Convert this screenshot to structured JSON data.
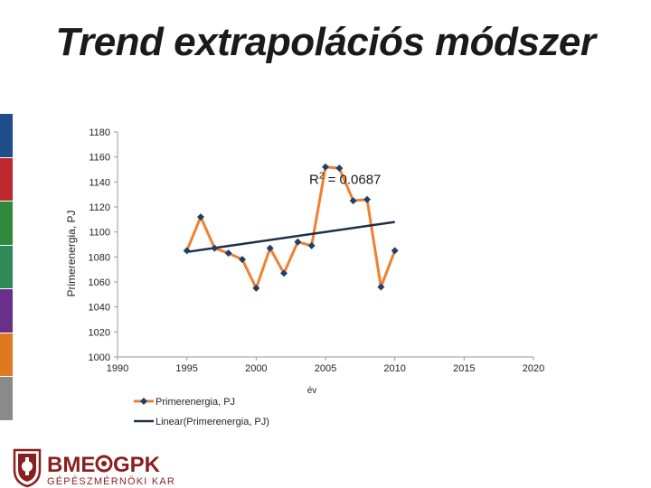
{
  "slide": {
    "title": "Trend extrapolációs módszer",
    "side_colors": [
      "#1f4e8a",
      "#c0282f",
      "#2f8a3c",
      "#2f8a5a",
      "#6a2f8a",
      "#e07820",
      "#8a8a8a"
    ]
  },
  "logo": {
    "main_left": "BME",
    "main_right": "GPK",
    "sub": "GÉPÉSZMÉRNÖKI KAR",
    "color": "#8a1f1f"
  },
  "chart_data": {
    "type": "line",
    "ylabel": "Primerenergia, PJ",
    "xlabel": "év",
    "xlim": [
      1990,
      2020
    ],
    "ylim": [
      1000,
      1180
    ],
    "xticks": [
      1990,
      1995,
      2000,
      2005,
      2010,
      2015,
      2020
    ],
    "yticks": [
      1000,
      1020,
      1040,
      1060,
      1080,
      1100,
      1120,
      1140,
      1160,
      1180
    ],
    "grid": false,
    "legend_position": "bottom-left",
    "series": [
      {
        "name": "Primerenergia, PJ",
        "color": "#f08030",
        "marker_color": "#1f3f6a",
        "x": [
          1995,
          1996,
          1997,
          1998,
          1999,
          2000,
          2001,
          2002,
          2003,
          2004,
          2005,
          2006,
          2007,
          2008,
          2009,
          2010
        ],
        "y": [
          1085,
          1112,
          1087,
          1083,
          1078,
          1055,
          1087,
          1067,
          1092,
          1089,
          1152,
          1151,
          1125,
          1126,
          1056,
          1085
        ]
      },
      {
        "name": "Linear(Primerenergia, PJ)",
        "color": "#1f2f4a",
        "x": [
          1995,
          2010
        ],
        "y": [
          1084,
          1108
        ]
      }
    ],
    "annotation": {
      "text": "R",
      "sup": "2",
      "rest": " = 0.0687",
      "x": 2002,
      "y": 1140
    }
  }
}
